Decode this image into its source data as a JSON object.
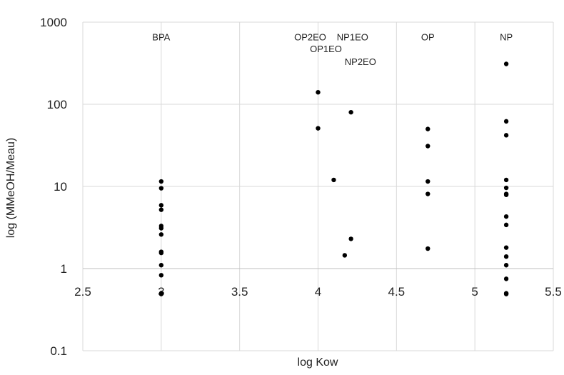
{
  "chart_data": {
    "type": "scatter",
    "title": "",
    "xlabel": "log Kow",
    "ylabel": "log (MMeOH/Meau)",
    "xlim": [
      2.5,
      5.5
    ],
    "ylim": [
      0.1,
      1000
    ],
    "yscale": "log",
    "grid": true,
    "x_ticks": [
      "2.5",
      "3",
      "3.5",
      "4",
      "4.5",
      "5",
      "5.5"
    ],
    "y_ticks": [
      "0.1",
      "1",
      "10",
      "100",
      "1000"
    ],
    "point_color": "#000000",
    "grid_color": "#d9d9d9",
    "annotations": [
      {
        "text": "BPA",
        "x": 3.0,
        "y": 600
      },
      {
        "text": "OP2EO",
        "x": 3.95,
        "y": 600
      },
      {
        "text": "NP1EO",
        "x": 4.22,
        "y": 600
      },
      {
        "text": "OP1EO",
        "x": 4.05,
        "y": 430
      },
      {
        "text": "NP2EO",
        "x": 4.27,
        "y": 300
      },
      {
        "text": "OP",
        "x": 4.7,
        "y": 600
      },
      {
        "text": "NP",
        "x": 5.2,
        "y": 600
      }
    ],
    "series": [
      {
        "x": [
          3.0,
          3.0,
          3.0,
          3.0,
          3.0,
          3.0,
          3.0,
          3.0,
          3.0,
          3.0,
          3.0,
          3.0,
          3.0,
          4.0,
          4.0,
          4.1,
          4.17,
          4.21,
          4.21,
          4.7,
          4.7,
          4.7,
          4.7,
          4.7,
          5.2,
          5.2,
          5.2,
          5.2,
          5.2,
          5.2,
          5.2,
          5.2,
          5.2,
          5.2,
          5.2,
          5.2,
          5.2,
          5.2,
          5.2
        ],
        "y": [
          11.5,
          9.5,
          5.9,
          5.2,
          3.3,
          3.1,
          2.6,
          1.6,
          1.55,
          1.1,
          0.83,
          0.5,
          0.49,
          140,
          51,
          12,
          1.45,
          2.3,
          80,
          50,
          31,
          11.5,
          8.1,
          1.75,
          310,
          62,
          42,
          12,
          9.6,
          8.1,
          7.9,
          4.3,
          3.4,
          1.8,
          1.4,
          1.1,
          0.75,
          0.5,
          0.49
        ]
      }
    ]
  }
}
